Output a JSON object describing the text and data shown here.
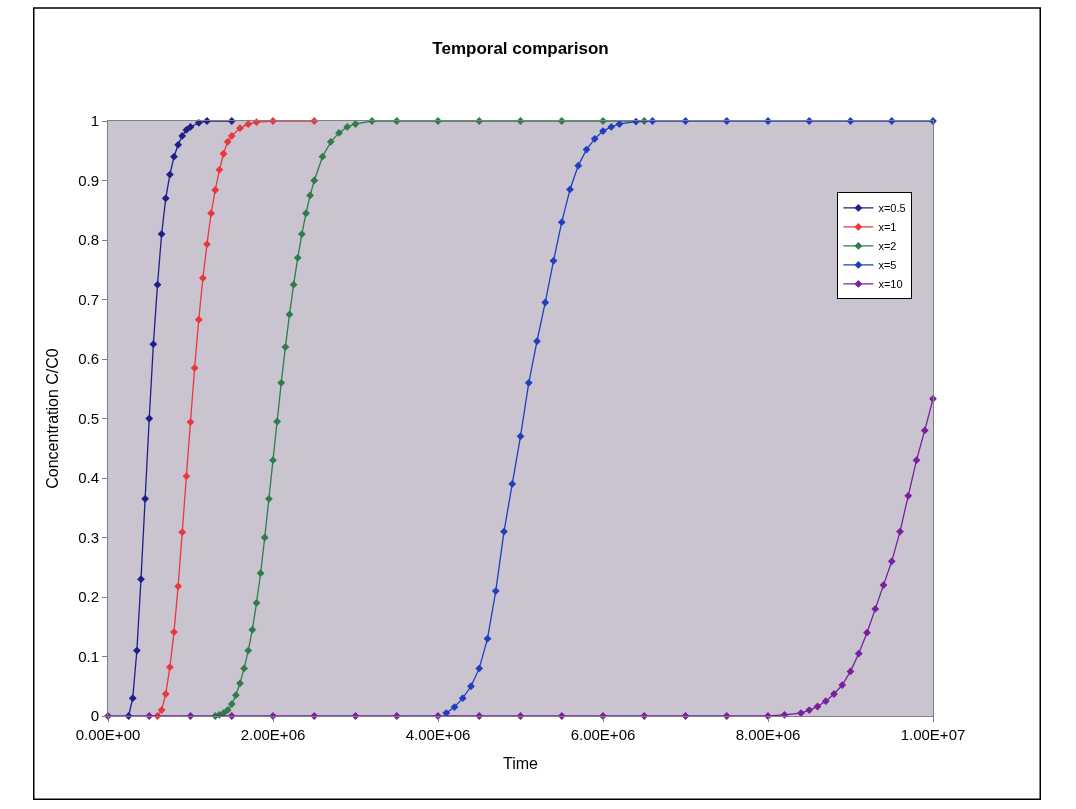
{
  "chart_data": {
    "type": "line",
    "title": "Temporal comparison",
    "xlabel": "Time",
    "ylabel": "Concentration C/C0",
    "xlim": [
      0,
      10000000
    ],
    "xticks": [
      {
        "value": 0,
        "label": "0.00E+00"
      },
      {
        "value": 2000000,
        "label": "2.00E+06"
      },
      {
        "value": 4000000,
        "label": "4.00E+06"
      },
      {
        "value": 6000000,
        "label": "6.00E+06"
      },
      {
        "value": 8000000,
        "label": "8.00E+06"
      },
      {
        "value": 10000000,
        "label": "1.00E+07"
      }
    ],
    "ylim": [
      0,
      1
    ],
    "yticks": [
      0,
      0.1,
      0.2,
      0.3,
      0.4,
      0.5,
      0.6,
      0.7,
      0.8,
      0.9,
      1
    ],
    "grid": false,
    "legend": "top right",
    "marker": "diamond",
    "line_style": "solid",
    "series": [
      {
        "name": "x=0.5",
        "color": "#1f1f8a",
        "x": [
          250000,
          300000,
          350000,
          400000,
          450000,
          500000,
          550000,
          600000,
          650000,
          700000,
          750000,
          800000,
          850000,
          900000,
          950000,
          1000000,
          1100000,
          1200000,
          1500000
        ],
        "values": [
          0,
          0.03,
          0.11,
          0.23,
          0.365,
          0.5,
          0.625,
          0.725,
          0.81,
          0.87,
          0.91,
          0.94,
          0.96,
          0.975,
          0.985,
          0.99,
          0.997,
          1,
          1
        ]
      },
      {
        "name": "x=1",
        "color": "#e8383d",
        "x": [
          600000,
          650000,
          700000,
          750000,
          800000,
          850000,
          900000,
          950000,
          1000000,
          1050000,
          1100000,
          1150000,
          1200000,
          1250000,
          1300000,
          1350000,
          1400000,
          1450000,
          1500000,
          1600000,
          1700000,
          1800000,
          2000000,
          2500000
        ],
        "values": [
          0,
          0.01,
          0.037,
          0.082,
          0.141,
          0.218,
          0.309,
          0.403,
          0.494,
          0.585,
          0.666,
          0.736,
          0.793,
          0.845,
          0.884,
          0.918,
          0.945,
          0.965,
          0.975,
          0.988,
          0.995,
          0.998,
          1,
          1
        ]
      },
      {
        "name": "x=2",
        "color": "#2e7d4a",
        "x": [
          1300000,
          1350000,
          1400000,
          1450000,
          1500000,
          1550000,
          1600000,
          1650000,
          1700000,
          1750000,
          1800000,
          1850000,
          1900000,
          1950000,
          2000000,
          2050000,
          2100000,
          2150000,
          2200000,
          2250000,
          2300000,
          2350000,
          2400000,
          2450000,
          2500000,
          2600000,
          2700000,
          2800000,
          2900000,
          3000000,
          3200000,
          3500000,
          4000000,
          4500000,
          5000000,
          5500000,
          6000000,
          6500000
        ],
        "values": [
          0,
          0.002,
          0.005,
          0.01,
          0.02,
          0.035,
          0.055,
          0.08,
          0.11,
          0.145,
          0.19,
          0.24,
          0.3,
          0.365,
          0.43,
          0.495,
          0.56,
          0.62,
          0.675,
          0.725,
          0.77,
          0.81,
          0.845,
          0.875,
          0.9,
          0.94,
          0.965,
          0.98,
          0.99,
          0.995,
          1,
          1,
          1,
          1,
          1,
          1,
          1,
          1
        ]
      },
      {
        "name": "x=5",
        "color": "#1f3fbf",
        "x": [
          4100000,
          4200000,
          4300000,
          4400000,
          4500000,
          4600000,
          4700000,
          4800000,
          4900000,
          5000000,
          5100000,
          5200000,
          5300000,
          5400000,
          5500000,
          5600000,
          5700000,
          5800000,
          5900000,
          6000000,
          6100000,
          6200000,
          6400000,
          6600000,
          7000000,
          7500000,
          8000000,
          8500000,
          9000000,
          9500000,
          10000000
        ],
        "values": [
          0.005,
          0.015,
          0.03,
          0.05,
          0.08,
          0.13,
          0.21,
          0.31,
          0.39,
          0.47,
          0.56,
          0.63,
          0.695,
          0.765,
          0.83,
          0.885,
          0.925,
          0.952,
          0.97,
          0.983,
          0.99,
          0.995,
          0.999,
          1,
          1,
          1,
          1,
          1,
          1,
          1,
          1
        ]
      },
      {
        "name": "x=10",
        "color": "#7a1fa0",
        "x": [
          0,
          500000,
          1000000,
          1500000,
          2000000,
          2500000,
          3000000,
          3500000,
          4000000,
          4500000,
          5000000,
          5500000,
          6000000,
          6500000,
          7000000,
          7500000,
          8000000,
          8200000,
          8400000,
          8500000,
          8600000,
          8700000,
          8800000,
          8900000,
          9000000,
          9100000,
          9200000,
          9300000,
          9400000,
          9500000,
          9600000,
          9700000,
          9800000,
          9900000,
          10000000
        ],
        "values": [
          0,
          0,
          0,
          0,
          0,
          0,
          0,
          0,
          0,
          0,
          0,
          0,
          0,
          0,
          0,
          0,
          0,
          0.002,
          0.005,
          0.01,
          0.016,
          0.025,
          0.037,
          0.052,
          0.075,
          0.105,
          0.14,
          0.18,
          0.22,
          0.26,
          0.31,
          0.37,
          0.43,
          0.48,
          0.533
        ]
      }
    ]
  }
}
